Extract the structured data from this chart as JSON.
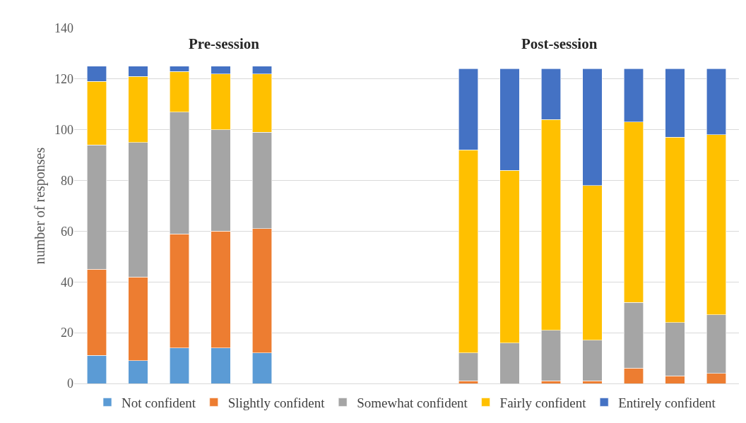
{
  "chart_data": {
    "type": "bar",
    "stacked": true,
    "ylabel": "number of responses",
    "annotations": [
      "Pre-session",
      "Post-session"
    ],
    "categories": [
      null,
      null,
      null,
      null,
      null,
      null,
      null,
      null,
      null,
      null,
      null,
      null,
      null,
      null,
      null,
      null
    ],
    "series": [
      {
        "name": "Not confident",
        "color": "#5b9bd5",
        "values": [
          11,
          9,
          14,
          14,
          12,
          null,
          null,
          null,
          null,
          0,
          0,
          0,
          0,
          0,
          0,
          0
        ]
      },
      {
        "name": "Slightly confident",
        "color": "#ed7d31",
        "values": [
          34,
          33,
          45,
          46,
          49,
          null,
          null,
          null,
          null,
          1,
          0,
          1,
          1,
          6,
          3,
          4
        ]
      },
      {
        "name": "Somewhat confident",
        "color": "#a5a5a5",
        "values": [
          49,
          53,
          48,
          40,
          38,
          null,
          null,
          null,
          null,
          11,
          16,
          20,
          16,
          26,
          21,
          23
        ]
      },
      {
        "name": "Fairly confident",
        "color": "#ffc000",
        "values": [
          25,
          26,
          16,
          22,
          23,
          null,
          null,
          null,
          null,
          80,
          68,
          83,
          61,
          71,
          73,
          71
        ]
      },
      {
        "name": "Entirely confident",
        "color": "#4472c4",
        "values": [
          6,
          4,
          2,
          3,
          3,
          null,
          null,
          null,
          null,
          32,
          40,
          20,
          46,
          21,
          27,
          26
        ]
      }
    ],
    "ylim": [
      0,
      140
    ],
    "yticks": [
      0,
      20,
      40,
      60,
      80,
      100,
      120,
      140
    ],
    "grid": "y",
    "legend": "bottom"
  }
}
